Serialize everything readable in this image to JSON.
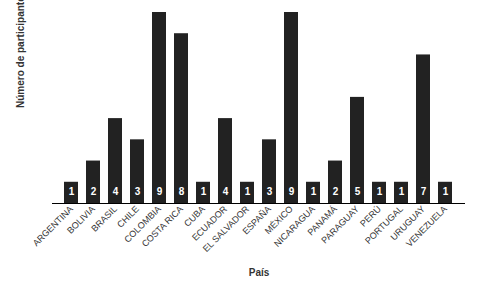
{
  "chart_data": {
    "type": "bar",
    "xlabel": "País",
    "ylabel": "Número de participantes",
    "categories": [
      "ARGENTINA",
      "BOLIVIA",
      "BRASIL",
      "CHILE",
      "COLOMBIA",
      "COSTA RICA",
      "CUBA",
      "ECUADOR",
      "EL SALVADOR",
      "ESPAÑA",
      "MÉXICO",
      "NICARAGUA",
      "PANAMÁ",
      "PARAGUAY",
      "PERÚ",
      "PORTUGAL",
      "URUGUAY",
      "VENEZUELA"
    ],
    "values": [
      1,
      2,
      4,
      3,
      9,
      8,
      1,
      4,
      1,
      3,
      9,
      1,
      2,
      5,
      1,
      1,
      7,
      1
    ],
    "color": "#222222",
    "ylim": [
      0,
      9
    ],
    "data_labels": true,
    "tick_labels": "x",
    "grid": false
  }
}
